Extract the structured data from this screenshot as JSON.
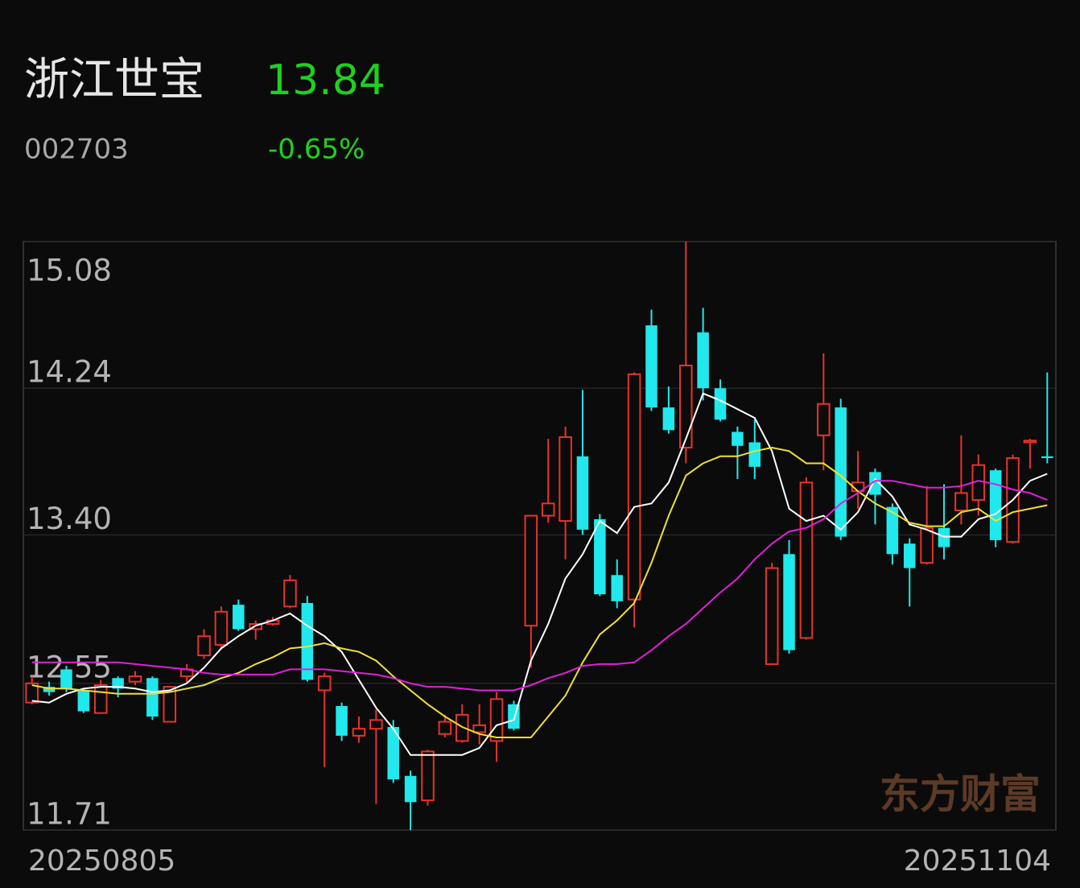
{
  "header": {
    "name": "浙江世宝",
    "price": "13.84",
    "code": "002703",
    "change": "-0.65%"
  },
  "chart_data": {
    "type": "candlestick",
    "watermark": "东方财富",
    "categories": [
      "20250805",
      null,
      null,
      null,
      null,
      null,
      null,
      null,
      null,
      null,
      null,
      null,
      null,
      null,
      null,
      null,
      null,
      null,
      null,
      null,
      null,
      null,
      null,
      null,
      null,
      null,
      null,
      null,
      null,
      null,
      null,
      null,
      null,
      null,
      null,
      null,
      null,
      null,
      null,
      null,
      null,
      null,
      null,
      null,
      null,
      null,
      null,
      null,
      null,
      null,
      null,
      null,
      null,
      null,
      null,
      null,
      null,
      null,
      null,
      "20251104"
    ],
    "open": [
      12.44,
      12.53,
      12.63,
      12.51,
      12.38,
      12.58,
      12.56,
      12.58,
      12.33,
      12.59,
      12.71,
      12.77,
      13.0,
      12.86,
      12.89,
      12.99,
      13.01,
      12.51,
      12.42,
      12.25,
      12.29,
      12.3,
      12.02,
      11.88,
      12.26,
      12.22,
      12.27,
      12.22,
      12.43,
      12.88,
      13.51,
      13.48,
      13.85,
      13.49,
      13.17,
      13.03,
      14.6,
      14.13,
      13.9,
      14.56,
      14.24,
      13.99,
      13.93,
      12.66,
      13.29,
      12.81,
      13.97,
      14.13,
      13.65,
      13.76,
      13.56,
      13.35,
      13.24,
      13.44,
      13.54,
      13.6,
      13.77,
      13.36,
      13.93,
      13.85
    ],
    "high": [
      12.59,
      12.56,
      12.65,
      12.52,
      12.57,
      12.59,
      12.62,
      12.59,
      12.53,
      12.66,
      12.86,
      12.99,
      13.03,
      12.91,
      12.93,
      13.17,
      13.05,
      12.61,
      12.44,
      12.36,
      12.4,
      12.34,
      12.05,
      12.17,
      12.37,
      12.43,
      12.43,
      12.5,
      12.45,
      13.51,
      13.95,
      14.02,
      14.23,
      13.52,
      13.26,
      14.33,
      14.69,
      14.25,
      15.08,
      14.7,
      14.29,
      14.02,
      14.06,
      13.24,
      13.37,
      13.73,
      14.44,
      14.18,
      13.88,
      13.78,
      13.58,
      13.38,
      13.68,
      13.69,
      13.97,
      13.86,
      13.78,
      13.86,
      13.95,
      14.33
    ],
    "low": [
      12.43,
      12.48,
      12.5,
      12.38,
      12.38,
      12.47,
      12.54,
      12.34,
      12.33,
      12.55,
      12.69,
      12.75,
      12.85,
      12.8,
      12.88,
      12.98,
      12.56,
      12.07,
      12.22,
      12.21,
      11.86,
      11.98,
      11.71,
      11.85,
      12.24,
      12.21,
      12.2,
      12.1,
      12.28,
      12.64,
      13.47,
      13.26,
      13.4,
      13.05,
      12.98,
      12.87,
      14.11,
      13.98,
      13.81,
      14.17,
      14.05,
      13.72,
      13.72,
      12.66,
      12.72,
      12.8,
      13.77,
      13.37,
      13.55,
      13.46,
      13.23,
      12.99,
      13.23,
      13.26,
      13.46,
      13.51,
      13.33,
      13.35,
      13.78,
      13.81
    ],
    "close": [
      12.55,
      12.5,
      12.52,
      12.39,
      12.54,
      12.52,
      12.59,
      12.36,
      12.53,
      12.63,
      12.82,
      12.96,
      12.86,
      12.89,
      12.91,
      13.14,
      12.57,
      12.59,
      12.25,
      12.29,
      12.34,
      12.0,
      11.87,
      12.16,
      12.33,
      12.37,
      12.31,
      12.46,
      12.29,
      13.51,
      13.58,
      13.96,
      13.43,
      13.06,
      13.02,
      14.32,
      14.13,
      14.0,
      14.37,
      14.24,
      14.06,
      13.91,
      13.79,
      13.21,
      12.74,
      13.7,
      14.15,
      13.39,
      13.7,
      13.63,
      13.29,
      13.21,
      13.44,
      13.33,
      13.64,
      13.8,
      13.37,
      13.84,
      13.94,
      13.84
    ],
    "up_color": "#e8322c",
    "down_color": "#20e8ec",
    "lines": [
      {
        "color": "#ffffff",
        "values": [
          12.45,
          12.44,
          12.49,
          12.52,
          12.53,
          12.53,
          12.52,
          12.5,
          12.51,
          12.55,
          12.64,
          12.75,
          12.82,
          12.88,
          12.91,
          12.95,
          12.88,
          12.82,
          12.73,
          12.57,
          12.41,
          12.29,
          12.14,
          12.14,
          12.14,
          12.14,
          12.18,
          12.31,
          12.34,
          12.68,
          12.89,
          13.15,
          13.29,
          13.48,
          13.41,
          13.56,
          13.58,
          13.7,
          13.95,
          14.21,
          14.17,
          14.12,
          14.07,
          13.88,
          13.55,
          13.48,
          13.51,
          13.43,
          13.53,
          13.72,
          13.62,
          13.46,
          13.43,
          13.39,
          13.39,
          13.49,
          13.52,
          13.6,
          13.71,
          13.75
        ]
      },
      {
        "color": "#f0e030",
        "values": [
          12.54,
          12.52,
          12.52,
          12.51,
          12.5,
          12.49,
          12.49,
          12.49,
          12.5,
          12.52,
          12.54,
          12.58,
          12.61,
          12.66,
          12.7,
          12.75,
          12.76,
          12.78,
          12.75,
          12.73,
          12.68,
          12.59,
          12.51,
          12.43,
          12.36,
          12.3,
          12.26,
          12.24,
          12.24,
          12.24,
          12.36,
          12.48,
          12.67,
          12.83,
          12.91,
          13.01,
          13.24,
          13.51,
          13.74,
          13.81,
          13.85,
          13.85,
          13.88,
          13.9,
          13.88,
          13.81,
          13.81,
          13.74,
          13.65,
          13.58,
          13.53,
          13.47,
          13.45,
          13.45,
          13.53,
          13.55,
          13.48,
          13.53,
          13.55,
          13.57
        ]
      },
      {
        "color": "#e020d8",
        "values": [
          12.67,
          12.67,
          12.67,
          12.67,
          12.67,
          12.67,
          12.66,
          12.65,
          12.64,
          12.63,
          12.61,
          12.6,
          12.6,
          12.6,
          12.6,
          12.63,
          12.63,
          12.63,
          12.62,
          12.61,
          12.6,
          12.58,
          12.55,
          12.53,
          12.53,
          12.52,
          12.51,
          12.51,
          12.51,
          12.54,
          12.58,
          12.61,
          12.65,
          12.66,
          12.66,
          12.67,
          12.74,
          12.82,
          12.89,
          12.98,
          13.07,
          13.15,
          13.26,
          13.35,
          13.42,
          13.44,
          13.49,
          13.58,
          13.64,
          13.71,
          13.71,
          13.69,
          13.67,
          13.67,
          13.68,
          13.71,
          13.69,
          13.66,
          13.64,
          13.6
        ]
      }
    ],
    "ylim": [
      11.71,
      15.08
    ],
    "yticks": [
      11.71,
      12.55,
      {
        "value": 13.4,
        "label": "13.40"
      },
      14.24,
      15.08
    ],
    "grid": true
  }
}
